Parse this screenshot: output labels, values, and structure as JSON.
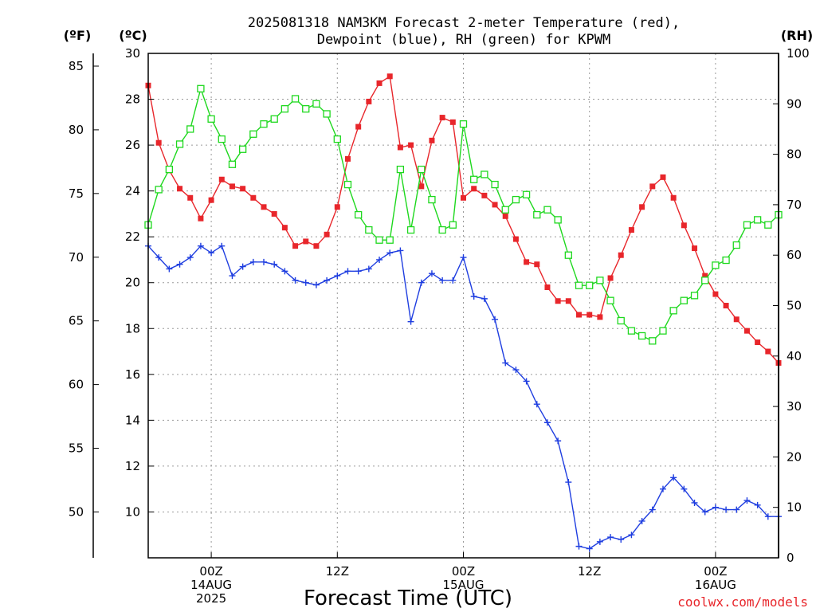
{
  "chart_data": {
    "type": "line",
    "title_line1": "2025081318 NAM3KM Forecast 2-meter Temperature (red),",
    "title_line2": "Dewpoint (blue), RH (green) for KPWM",
    "xlabel": "Forecast Time (UTC)",
    "credit": "coolwx.com/models",
    "units": {
      "left_f": "(ºF)",
      "left_c": "(ºC)",
      "right": "(RH)"
    },
    "grid": true,
    "x_hours": [
      0,
      1,
      2,
      3,
      4,
      5,
      6,
      7,
      8,
      9,
      10,
      11,
      12,
      13,
      14,
      15,
      16,
      17,
      18,
      19,
      20,
      21,
      22,
      23,
      24,
      25,
      26,
      27,
      28,
      29,
      30,
      31,
      32,
      33,
      34,
      35,
      36,
      37,
      38,
      39,
      40,
      41,
      42,
      43,
      44,
      45,
      46,
      47,
      48,
      49,
      50,
      51,
      52,
      53,
      54,
      55,
      56,
      57,
      58,
      59,
      60
    ],
    "x_ticks": [
      {
        "hour": 6,
        "lines": [
          "00Z",
          "14AUG",
          "2025"
        ]
      },
      {
        "hour": 18,
        "lines": [
          "12Z"
        ]
      },
      {
        "hour": 30,
        "lines": [
          "00Z",
          "15AUG"
        ]
      },
      {
        "hour": 42,
        "lines": [
          "12Z"
        ]
      },
      {
        "hour": 54,
        "lines": [
          "00Z",
          "16AUG"
        ]
      }
    ],
    "y_celsius": {
      "range": [
        8,
        30
      ],
      "ticks": [
        10,
        12,
        14,
        16,
        18,
        20,
        22,
        24,
        26,
        28,
        30
      ]
    },
    "y_fahrenheit": {
      "range": [
        46.4,
        86
      ],
      "ticks": [
        50,
        55,
        60,
        65,
        70,
        75,
        80,
        85
      ]
    },
    "y_rh": {
      "range": [
        0,
        100
      ],
      "ticks": [
        0,
        10,
        20,
        30,
        40,
        50,
        60,
        70,
        80,
        90,
        100
      ]
    },
    "series": [
      {
        "name": "Temperature",
        "axis": "celsius",
        "color": "#e8262b",
        "marker": "filled-square",
        "values": [
          28.6,
          26.1,
          24.9,
          24.1,
          23.7,
          22.8,
          23.6,
          24.5,
          24.2,
          24.1,
          23.7,
          23.3,
          23.0,
          22.4,
          21.6,
          21.8,
          21.6,
          22.1,
          23.3,
          25.4,
          26.8,
          27.9,
          28.7,
          29.0,
          25.9,
          26.0,
          24.2,
          26.2,
          27.2,
          27.0,
          23.7,
          24.1,
          23.8,
          23.4,
          22.9,
          21.9,
          20.9,
          20.8,
          19.8,
          19.2,
          19.2,
          18.6,
          18.6,
          18.5,
          20.2,
          21.2,
          22.3,
          23.3,
          24.2,
          24.6,
          23.7,
          22.5,
          21.5,
          20.3,
          19.5,
          19.0,
          18.4,
          17.9,
          17.4,
          17.0,
          16.5
        ]
      },
      {
        "name": "Dewpoint",
        "axis": "celsius",
        "color": "#1f3ee0",
        "marker": "plus",
        "values": [
          21.6,
          21.1,
          20.6,
          20.8,
          21.1,
          21.6,
          21.3,
          21.6,
          20.3,
          20.7,
          20.9,
          20.9,
          20.8,
          20.5,
          20.1,
          20.0,
          19.9,
          20.1,
          20.3,
          20.5,
          20.5,
          20.6,
          21.0,
          21.3,
          21.4,
          18.3,
          20.0,
          20.4,
          20.1,
          20.1,
          21.1,
          19.4,
          19.3,
          18.4,
          16.5,
          16.2,
          15.7,
          14.7,
          13.9,
          13.1,
          11.3,
          8.5,
          8.4,
          8.7,
          8.9,
          8.8,
          9.0,
          9.6,
          10.1,
          11.0,
          11.5,
          11.0,
          10.4,
          10.0,
          10.2,
          10.1,
          10.1,
          10.5,
          10.3,
          9.8,
          9.8
        ]
      },
      {
        "name": "RH",
        "axis": "rh",
        "color": "#1ed81e",
        "marker": "open-square",
        "values": [
          66,
          73,
          77,
          82,
          85,
          93,
          87,
          83,
          78,
          81,
          84,
          86,
          87,
          89,
          91,
          89,
          90,
          88,
          83,
          74,
          68,
          65,
          63,
          63,
          77,
          65,
          77,
          71,
          65,
          66,
          86,
          75,
          76,
          74,
          69,
          71,
          72,
          68,
          69,
          67,
          60,
          54,
          54,
          55,
          51,
          47,
          45,
          44,
          43,
          45,
          49,
          51,
          52,
          55,
          58,
          59,
          62,
          66,
          67,
          66,
          68
        ]
      }
    ]
  }
}
